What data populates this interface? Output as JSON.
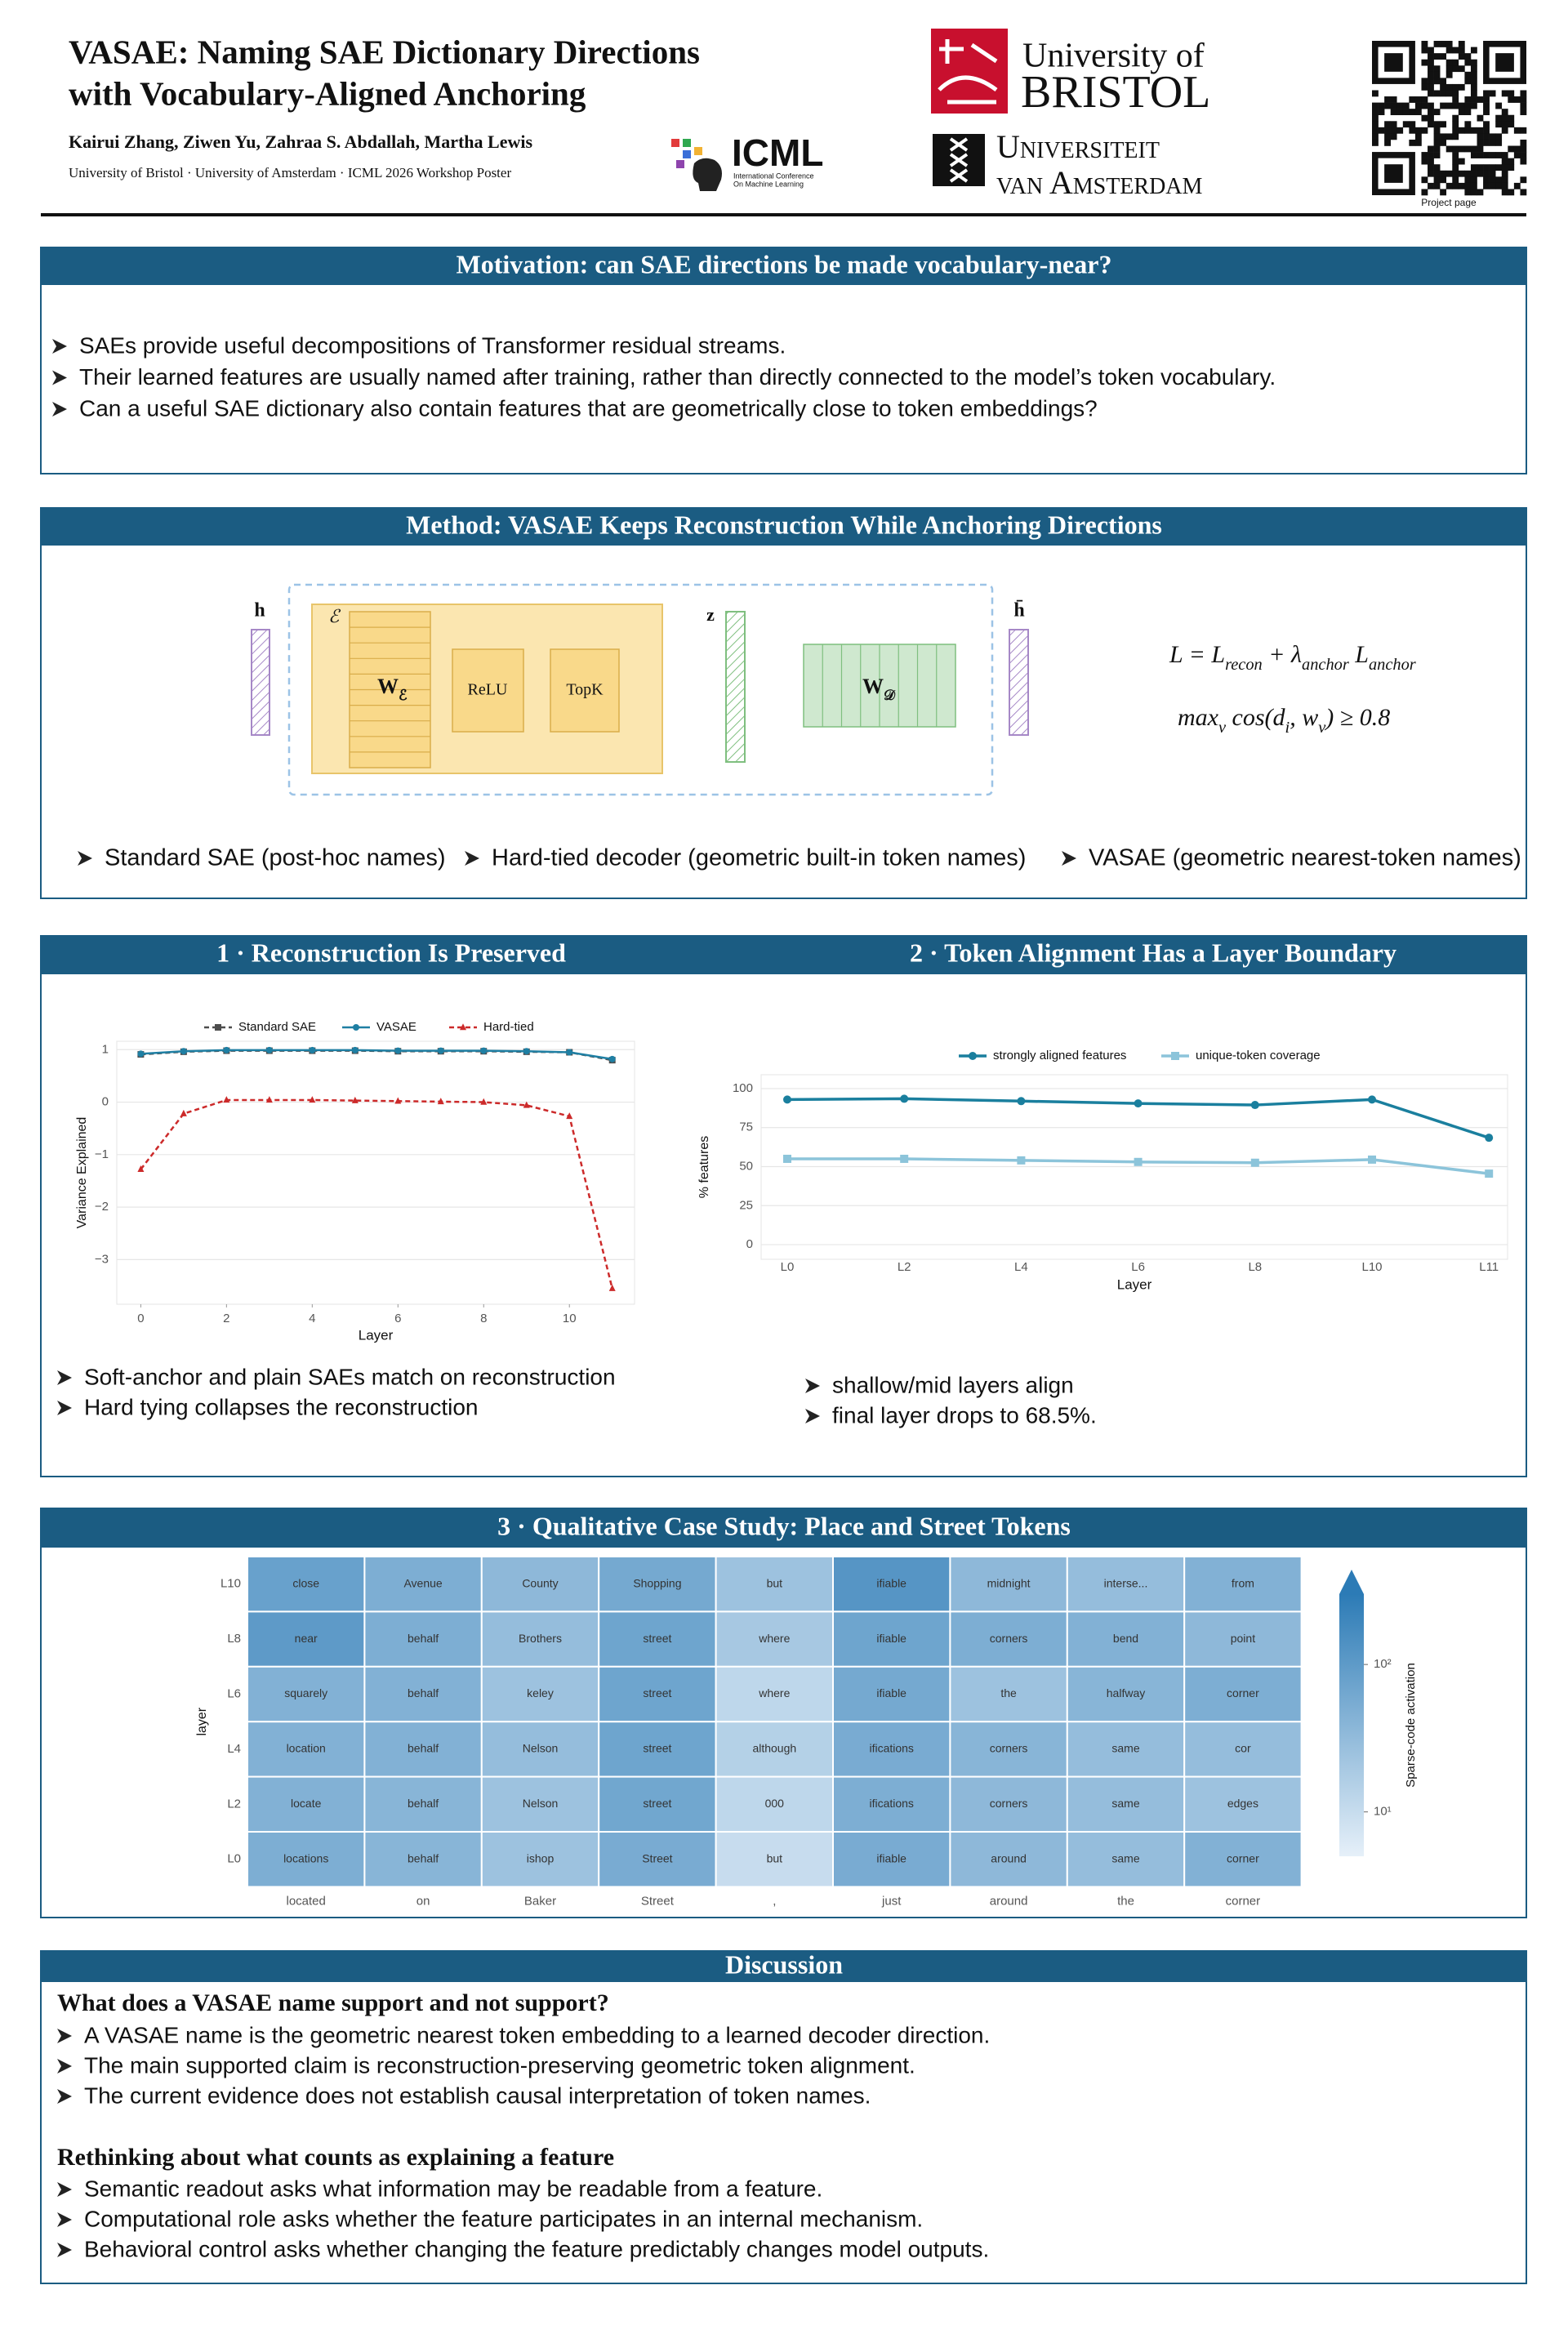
{
  "header": {
    "title_lines": [
      "VASAE: Naming SAE Dictionary Directions",
      "with Vocabulary-Aligned Anchoring"
    ],
    "authors": "Kairui Zhang, Ziwen Yu, Zahraa S. Abdallah, Martha Lewis",
    "affiliation": "University of Bristol · University of Amsterdam · ICML 2026 Workshop Poster",
    "icml": "ICML",
    "icml_sub": [
      "International Conference",
      "On Machine Learning"
    ],
    "bristol": [
      "University of",
      "BRISTOL"
    ],
    "amsterdam": [
      "Universiteit",
      "van Amsterdam"
    ],
    "qr_caption": "Project page"
  },
  "motivation": {
    "title": "Motivation: can SAE directions be made vocabulary-near?",
    "bullets": [
      "SAEs provide useful decompositions of Transformer residual streams.",
      "Their learned features are usually named after training, rather than directly connected to the model’s token vocabulary.",
      "Can a useful SAE dictionary also contain features that are geometrically close to token embeddings?"
    ]
  },
  "method": {
    "title": "Method: VASAE Keeps Reconstruction While Anchoring Directions",
    "diagram": {
      "h": "h",
      "encoder": "ℰ",
      "w_enc": [
        "W",
        "ℰ"
      ],
      "relu": "ReLU",
      "topk": "TopK",
      "z": "z",
      "w_dec": [
        "W",
        "𝒟"
      ],
      "h_hat": "h̄"
    },
    "equations": [
      [
        "L = L",
        "recon",
        " + λ",
        "anchor",
        " L",
        "anchor"
      ],
      [
        "max",
        "v",
        " cos(d",
        "i",
        ", w",
        "v",
        ")  ≥  0.8"
      ]
    ],
    "bullets": [
      "Standard SAE (post-hoc names)",
      "Hard-tied decoder (geometric built-in token names)",
      "VASAE (geometric nearest-token names)"
    ]
  },
  "results": {
    "bullets_left": [
      "Soft-anchor and plain SAEs match on reconstruction",
      "Hard tying collapses the reconstruction"
    ],
    "bullets_right": [
      "shallow/mid layers align",
      "final layer drops to 68.5%."
    ]
  },
  "chart_data": [
    {
      "type": "line",
      "title": "1 · Reconstruction Is Preserved",
      "x": [
        0,
        1,
        2,
        3,
        4,
        5,
        6,
        7,
        8,
        9,
        10,
        11
      ],
      "series": [
        {
          "name": "Standard SAE",
          "color": "#4d4d4d",
          "dash": true,
          "marker": "square",
          "values": [
            0.91,
            0.96,
            0.98,
            0.98,
            0.98,
            0.98,
            0.97,
            0.97,
            0.97,
            0.96,
            0.95,
            0.8
          ]
        },
        {
          "name": "VASAE",
          "color": "#1f7fa3",
          "dash": false,
          "marker": "circle",
          "values": [
            0.92,
            0.97,
            0.99,
            0.99,
            0.99,
            0.99,
            0.98,
            0.98,
            0.98,
            0.97,
            0.95,
            0.82
          ]
        },
        {
          "name": "Hard-tied",
          "color": "#cc2a2a",
          "dash": true,
          "marker": "triangle",
          "values": [
            -1.28,
            -0.22,
            0.04,
            0.04,
            0.04,
            0.03,
            0.02,
            0.01,
            0.0,
            -0.06,
            -0.27,
            -3.55
          ]
        }
      ],
      "xlim": [
        -0.56,
        11.52
      ],
      "xticks": [
        0,
        2,
        4,
        6,
        8,
        10
      ],
      "ylim": [
        -3.85,
        1.16
      ],
      "yticks": [
        {
          "value": -3,
          "label": "−3"
        },
        {
          "value": -2,
          "label": "−2"
        },
        {
          "value": -1,
          "label": "−1"
        },
        0,
        1
      ],
      "x_label": "Layer",
      "y_label": "Variance Explained",
      "grid": true,
      "legend": "top"
    },
    {
      "type": "line",
      "title": "2 · Token Alignment Has a Layer Boundary",
      "categories": [
        "L0",
        "L2",
        "L4",
        "L6",
        "L8",
        "L10",
        "L11"
      ],
      "series": [
        {
          "name": "strongly aligned features",
          "color": "#1a7f9e",
          "dash": false,
          "marker": "circle",
          "values": [
            93,
            93.5,
            92,
            90.5,
            89.5,
            93,
            68.5
          ]
        },
        {
          "name": "unique-token coverage",
          "color": "#8cc4da",
          "dash": false,
          "marker": "square",
          "values": [
            55,
            55,
            54,
            53,
            52.5,
            54.5,
            45.5
          ]
        }
      ],
      "ylim": [
        -9.4,
        108.9
      ],
      "yticks": [
        0,
        25,
        50,
        75,
        100
      ],
      "x_label": "Layer",
      "y_label": "% features",
      "grid": true,
      "legend": "top"
    },
    {
      "type": "heatmap",
      "title": "3 · Qualitative Case Study: Place and Street Tokens",
      "categories": [
        "located",
        "on",
        "Baker",
        "Street",
        ",",
        "just",
        "around",
        "the",
        "corner"
      ],
      "rows": [
        "L10",
        "L8",
        "L6",
        "L4",
        "L2",
        "L0"
      ],
      "cell_labels": [
        [
          "close",
          "Avenue",
          "County",
          "Shopping",
          "but",
          "ifiable",
          "midnight",
          "interse...",
          "from"
        ],
        [
          "near",
          "behalf",
          "Brothers",
          "street",
          "where",
          "ifiable",
          "corners",
          "bend",
          "point"
        ],
        [
          "squarely",
          "behalf",
          "keley",
          "street",
          "where",
          "ifiable",
          "the",
          "halfway",
          "corner"
        ],
        [
          "location",
          "behalf",
          "Nelson",
          "street",
          "although",
          "ifications",
          "corners",
          "same",
          "cor"
        ],
        [
          "locate",
          "behalf",
          "Nelson",
          "street",
          "000",
          "ifications",
          "corners",
          "same",
          "edges"
        ],
        [
          "locations",
          "behalf",
          "ishop",
          "Street",
          "but",
          "ifiable",
          "around",
          "same",
          "corner"
        ]
      ],
      "values": [
        [
          80,
          50,
          35,
          60,
          25,
          120,
          35,
          30,
          45
        ],
        [
          100,
          50,
          30,
          70,
          20,
          70,
          50,
          45,
          35
        ],
        [
          45,
          45,
          25,
          70,
          12,
          60,
          25,
          40,
          50
        ],
        [
          45,
          45,
          30,
          70,
          15,
          55,
          40,
          30,
          30
        ],
        [
          45,
          40,
          25,
          65,
          12,
          50,
          35,
          30,
          25
        ],
        [
          50,
          40,
          25,
          55,
          10,
          55,
          35,
          30,
          45
        ]
      ],
      "clim": [
        5,
        300
      ],
      "log_color": true,
      "colors": [
        "#e6f0f9",
        "#2c7bb6"
      ],
      "cticks": [
        {
          "value": 10,
          "label": "10¹"
        },
        {
          "value": 100,
          "label": "10²"
        }
      ],
      "colorbar_label": "Sparse-code activation",
      "y_label": "layer"
    }
  ],
  "discussion": {
    "title": "Discussion",
    "sections": [
      {
        "heading": "What does a VASAE name support and not support?",
        "bullets": [
          "A VASAE name is the geometric nearest token embedding to a learned decoder direction.",
          "The main supported claim is reconstruction-preserving geometric token alignment.",
          "The current evidence does not establish causal interpretation of token names."
        ]
      },
      {
        "heading": "Rethinking about what counts as explaining a feature",
        "bullets": [
          "Semantic readout asks what information may be readable from a feature.",
          "Computational role asks whether the feature participates in an internal mechanism.",
          "Behavioral control asks whether changing the feature predictably changes model outputs."
        ]
      }
    ]
  }
}
